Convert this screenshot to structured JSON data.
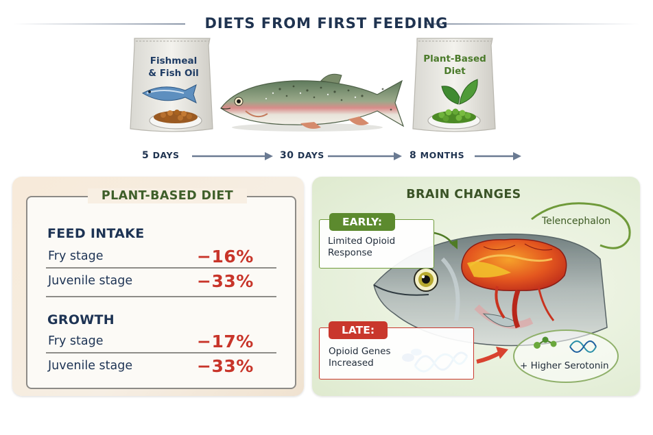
{
  "header": {
    "title": "DIETS FROM FIRST FEEDING"
  },
  "bags": {
    "left": {
      "line1": "Fishmeal",
      "line2": "& Fish Oil"
    },
    "right": {
      "line1": "Plant-Based",
      "line2": "Diet"
    }
  },
  "timeline": [
    {
      "num": "5",
      "unit": "DAYS"
    },
    {
      "num": "30",
      "unit": "DAYS"
    },
    {
      "num": "8",
      "unit": "MONTHS"
    }
  ],
  "left_panel": {
    "title": "PLANT-BASED DIET",
    "feed": {
      "heading": "FEED INTAKE",
      "rows": [
        {
          "label": "Fry stage",
          "value": "−16%"
        },
        {
          "label": "Juvenile stage",
          "value": "−33%"
        }
      ]
    },
    "growth": {
      "heading": "GROWTH",
      "rows": [
        {
          "label": "Fry stage",
          "value": "−17%"
        },
        {
          "label": "Juvenile stage",
          "value": "−33%"
        }
      ]
    }
  },
  "right_panel": {
    "title": "BRAIN CHANGES",
    "early": {
      "tag": "EARLY:",
      "line1": "Limited Opioid",
      "line2": "Response"
    },
    "late": {
      "tag": "LATE:",
      "line1": "Opioid Genes",
      "line2": "Increased"
    },
    "region": "Telencephalon",
    "serotonin": "+ Higher Serotonin"
  },
  "colors": {
    "navy": "#1f3350",
    "green_title": "#3f5f2a",
    "red_value": "#c8352a",
    "early_tag": "#5c8a2e",
    "late_tag": "#c9372c"
  },
  "icons": [
    "fish-icon",
    "feed-bag-icon",
    "leaf-icon",
    "arrow-right-icon",
    "brain-icon",
    "dna-icon",
    "molecule-icon"
  ]
}
